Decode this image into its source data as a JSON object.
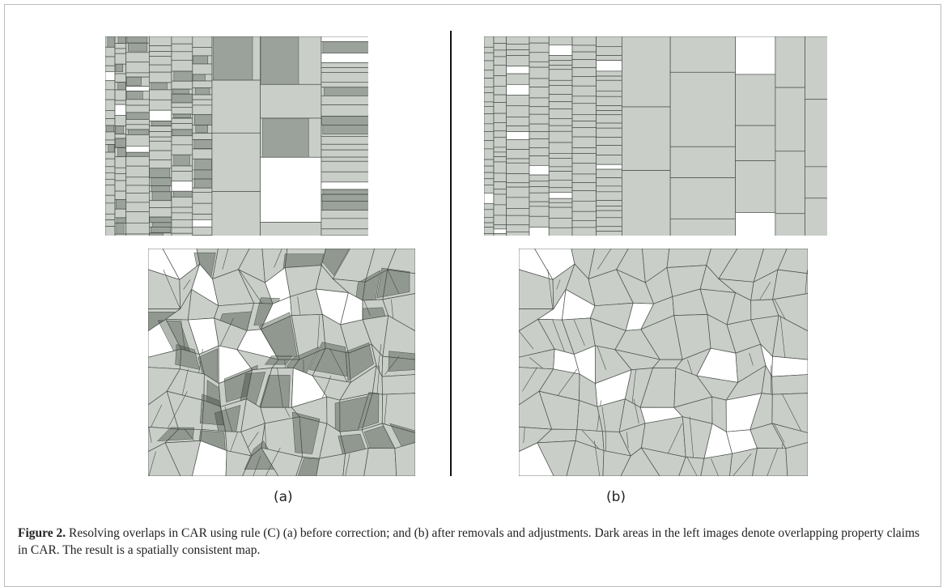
{
  "figure": {
    "panels": [
      {
        "label": "(a)"
      },
      {
        "label": "(b)"
      }
    ],
    "caption": {
      "label": "Figure 2.",
      "text": "Resolving overlaps in CAR using rule (C) (a) before correction; and (b) after removals and adjustments. Dark areas in the left images denote overlapping property claims in CAR. The result is a spatially consistent map."
    }
  }
}
